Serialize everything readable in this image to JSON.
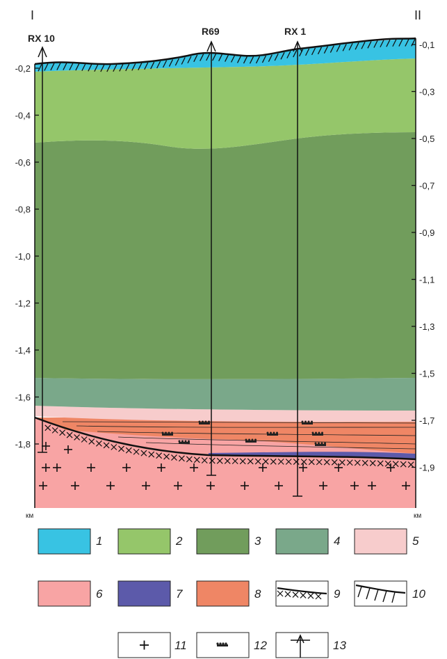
{
  "section": {
    "left_label": "I",
    "right_label": "II",
    "left_unit": "км",
    "right_unit": "км",
    "left_axis_ticks": [
      "-0,2",
      "-0,4",
      "-0,6",
      "-0,8",
      "-1,0",
      "-1,2",
      "-1,4",
      "-1,6",
      "-1,8"
    ],
    "right_axis_ticks": [
      "-0,1",
      "-0,3",
      "-0,5",
      "-0,7",
      "-0,9",
      "-1,1",
      "-1,3",
      "-1,5",
      "-1,7",
      "-1,9"
    ],
    "wells": [
      {
        "name": "RX 10"
      },
      {
        "name": "R69"
      },
      {
        "name": "RX 1"
      }
    ],
    "layers": [
      {
        "id": 1,
        "color": "#38c3e3"
      },
      {
        "id": 2,
        "color": "#95c66a"
      },
      {
        "id": 3,
        "color": "#719d5c"
      },
      {
        "id": 4,
        "color": "#7aa88a"
      },
      {
        "id": 5,
        "color": "#f7cccc"
      },
      {
        "id": 6,
        "color": "#f8a4a4"
      },
      {
        "id": 7,
        "color": "#5c5aaa"
      },
      {
        "id": 8,
        "color": "#ef8665"
      }
    ]
  },
  "legend": {
    "items": [
      {
        "num": "1",
        "kind": "fill",
        "color": "#38c3e3"
      },
      {
        "num": "2",
        "kind": "fill",
        "color": "#95c66a"
      },
      {
        "num": "3",
        "kind": "fill",
        "color": "#719d5c"
      },
      {
        "num": "4",
        "kind": "fill",
        "color": "#7aa88a"
      },
      {
        "num": "5",
        "kind": "fill",
        "color": "#f7cccc"
      },
      {
        "num": "6",
        "kind": "fill",
        "color": "#f8a4a4"
      },
      {
        "num": "7",
        "kind": "fill",
        "color": "#5c5aaa"
      },
      {
        "num": "8",
        "kind": "fill",
        "color": "#ef8665"
      },
      {
        "num": "9",
        "kind": "crosses-line"
      },
      {
        "num": "10",
        "kind": "hatched-line"
      },
      {
        "num": "11",
        "kind": "plus"
      },
      {
        "num": "12",
        "kind": "dots"
      },
      {
        "num": "13",
        "kind": "well"
      }
    ]
  }
}
